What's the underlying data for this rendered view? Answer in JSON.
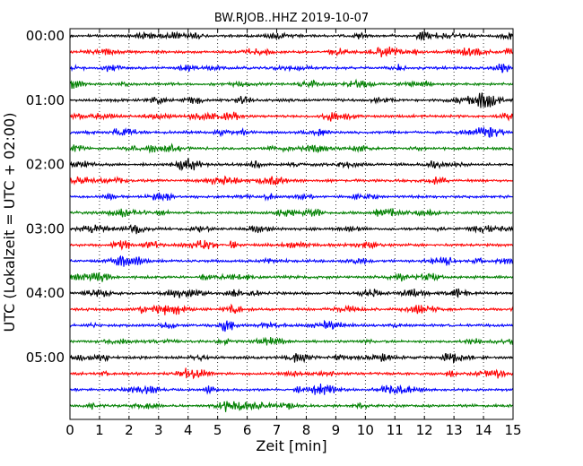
{
  "chart_data": {
    "type": "line",
    "title": "BW.RJOB..HHZ 2019-10-07",
    "xlabel": "Zeit  [min]",
    "ylabel": "UTC (Lokalzeit = UTC + 02:00)",
    "xlim": [
      0,
      15
    ],
    "x_ticks": [
      "0",
      "1",
      "2",
      "3",
      "4",
      "5",
      "6",
      "7",
      "8",
      "9",
      "10",
      "11",
      "12",
      "13",
      "14",
      "15"
    ],
    "y_ticks": [
      "00:00",
      "01:00",
      "02:00",
      "03:00",
      "04:00",
      "05:00"
    ],
    "grid": "vertical dotted at each minute",
    "trace_interval_minutes": 15,
    "trace_colors": [
      "#000000",
      "#ff0000",
      "#0000ff",
      "#008000"
    ],
    "trace_start_times": [
      "00:00",
      "00:15",
      "00:30",
      "00:45",
      "01:00",
      "01:15",
      "01:30",
      "01:45",
      "02:00",
      "02:15",
      "02:30",
      "02:45",
      "03:00",
      "03:15",
      "03:30",
      "03:45",
      "04:00",
      "04:15",
      "04:30",
      "04:45",
      "05:00",
      "05:15",
      "05:30",
      "05:45"
    ]
  }
}
